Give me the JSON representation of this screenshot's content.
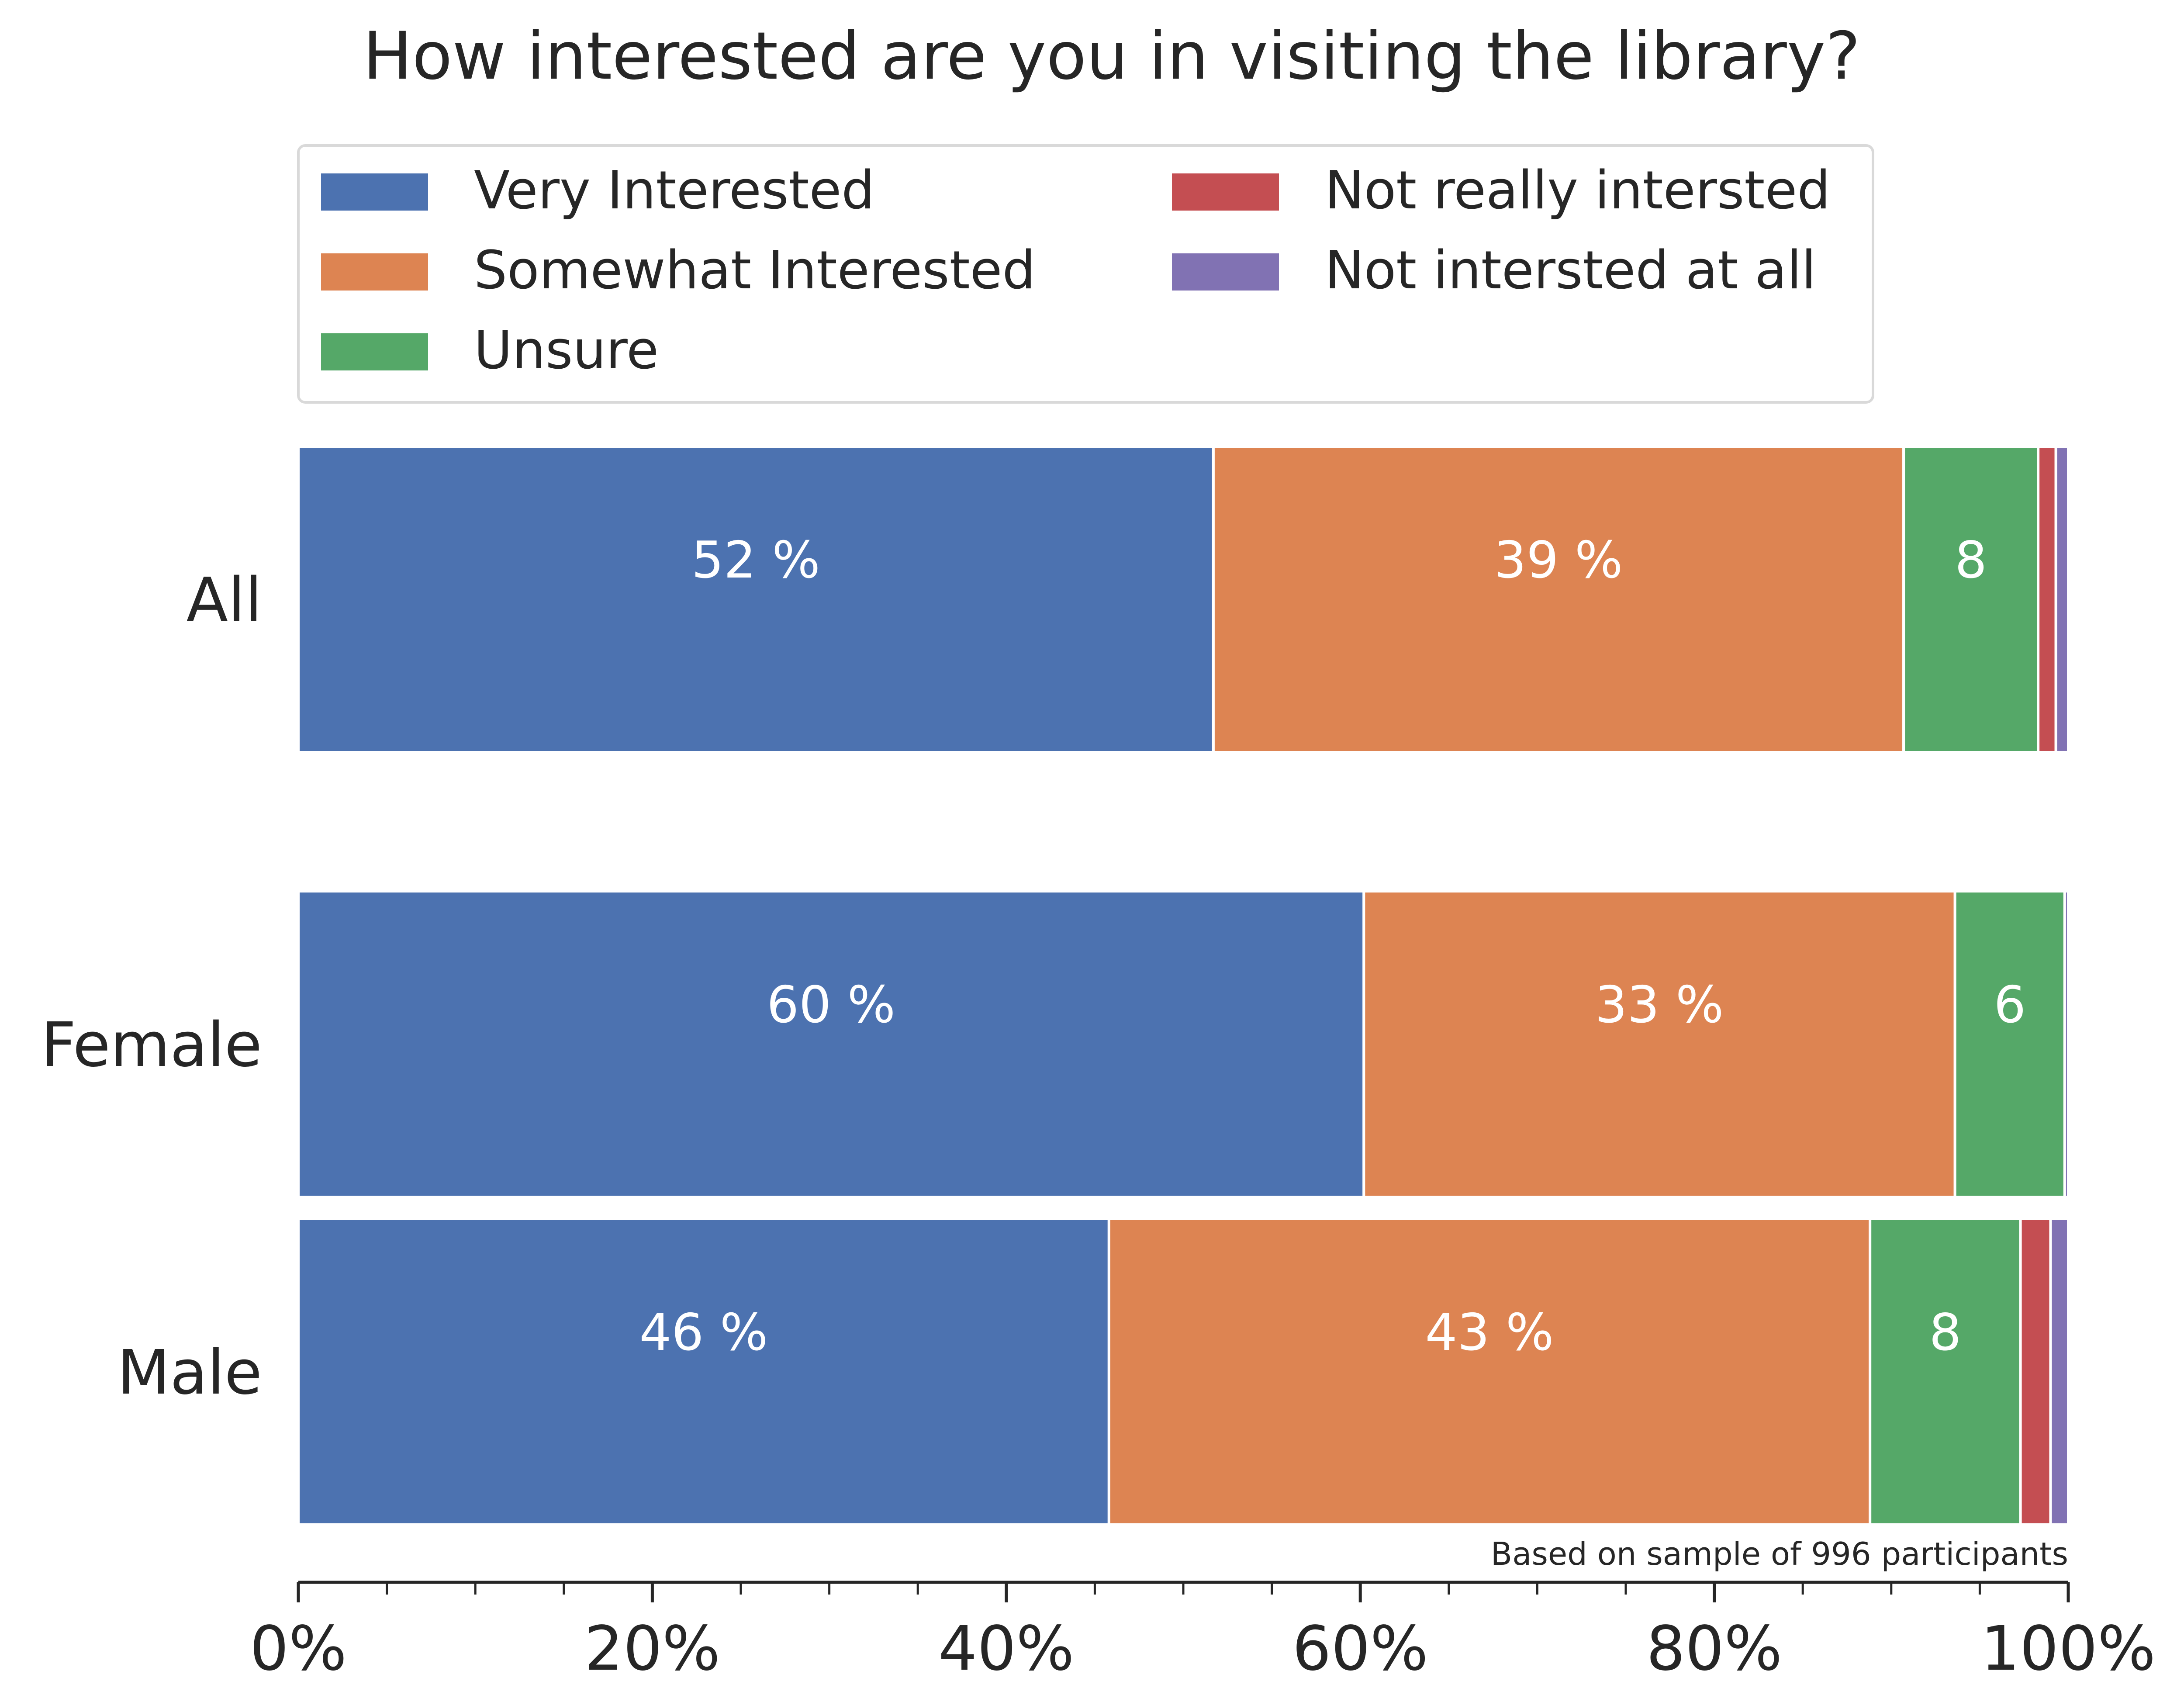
{
  "chart_data": {
    "type": "bar",
    "orientation": "horizontal",
    "stacked": true,
    "title": "How interested are you in visiting the library?",
    "categories": [
      "All",
      "Female",
      "Male"
    ],
    "series": [
      {
        "name": "Very Interested",
        "color": "#4c72b0",
        "values": [
          51.7,
          60.2,
          45.8
        ],
        "labels": [
          "52 %",
          "60 %",
          "46 %"
        ]
      },
      {
        "name": "Somewhat Interested",
        "color": "#dd8452",
        "values": [
          39.0,
          33.4,
          43.0
        ],
        "labels": [
          "39 %",
          "33 %",
          "43 %"
        ]
      },
      {
        "name": "Unsure",
        "color": "#55a868",
        "values": [
          7.6,
          6.2,
          8.5
        ],
        "labels": [
          "8",
          "6",
          "8"
        ]
      },
      {
        "name": "Not really intersted",
        "color": "#c44e52",
        "values": [
          1.0,
          0.0,
          1.7
        ],
        "labels": [
          "",
          "",
          ""
        ]
      },
      {
        "name": "Not intersted at all",
        "color": "#8172b3",
        "values": [
          0.7,
          0.2,
          1.0
        ],
        "labels": [
          "",
          "",
          ""
        ]
      }
    ],
    "x_ticks": [
      "0%",
      "20%",
      "40%",
      "60%",
      "80%",
      "100%"
    ],
    "xlim": [
      0,
      100
    ],
    "legend_position": "top",
    "grid": false,
    "note": "Based on sample of 996 participants"
  }
}
